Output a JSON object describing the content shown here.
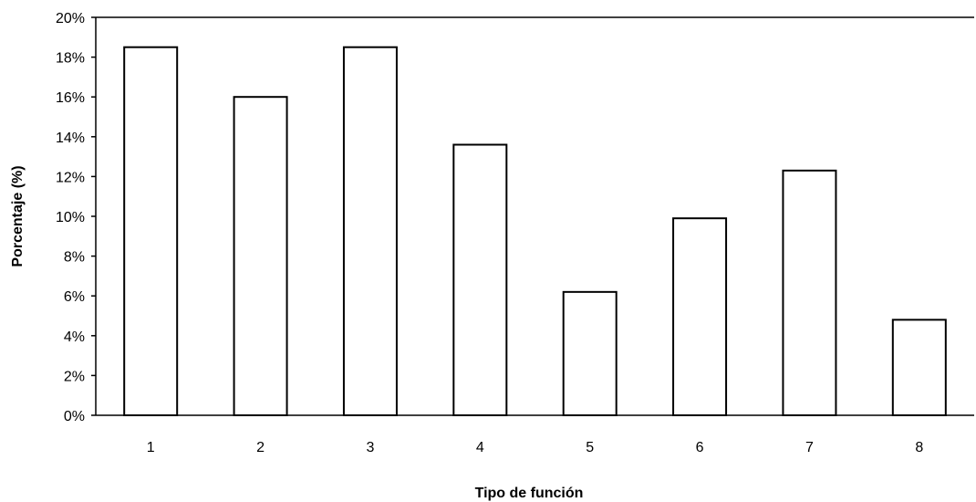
{
  "chart_data": {
    "type": "bar",
    "categories": [
      "1",
      "2",
      "3",
      "4",
      "5",
      "6",
      "7",
      "8"
    ],
    "values": [
      18.5,
      16.0,
      18.5,
      13.6,
      6.2,
      9.9,
      12.3,
      4.8
    ],
    "xlabel": "Tipo de función",
    "ylabel": "Porcentaje (%)",
    "ylim": [
      0,
      20
    ],
    "yticks": [
      "0%",
      "2%",
      "4%",
      "6%",
      "8%",
      "10%",
      "12%",
      "14%",
      "16%",
      "18%",
      "20%"
    ],
    "grid": false,
    "legend": "none",
    "colors": {
      "bar_fill": "#ffffff",
      "bar_stroke": "#000000"
    }
  }
}
